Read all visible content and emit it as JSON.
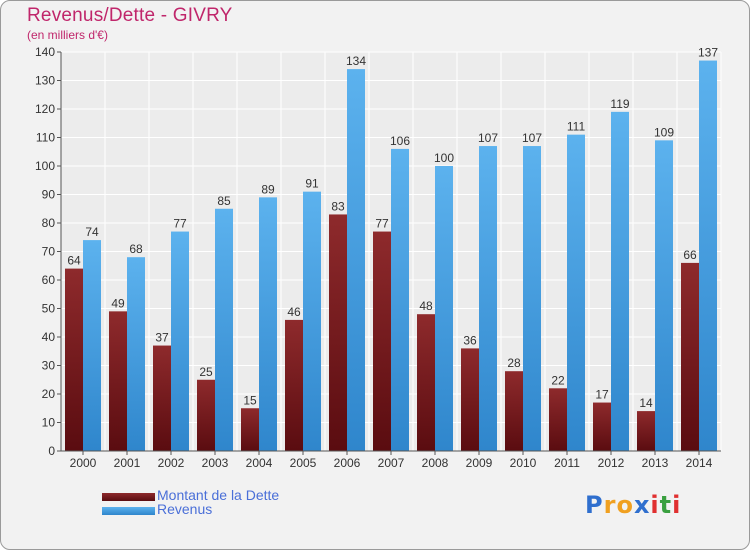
{
  "header": {
    "title": "Revenus/Dette - GIVRY",
    "subtitle": "(en milliers d'€)"
  },
  "legend": {
    "dette_label": "Montant de la Dette",
    "revenus_label": "Revenus"
  },
  "logo": {
    "letters": [
      "P",
      "r",
      "o",
      "x",
      "i",
      "t",
      "i"
    ],
    "colors": [
      "#2f6fce",
      "#f0a020",
      "#f0a020",
      "#2f6fce",
      "#e03030",
      "#3aa040",
      "#e03030"
    ]
  },
  "colors": {
    "dette": "#7a1a1e",
    "revenus": "#4aa3e6",
    "title": "#c0266b"
  },
  "chart_data": {
    "type": "bar",
    "title": "Revenus/Dette - GIVRY",
    "subtitle": "(en milliers d'€)",
    "categories": [
      "2000",
      "2001",
      "2002",
      "2003",
      "2004",
      "2005",
      "2006",
      "2007",
      "2008",
      "2009",
      "2010",
      "2011",
      "2012",
      "2013",
      "2014"
    ],
    "series": [
      {
        "name": "Montant de la Dette",
        "values": [
          64,
          49,
          37,
          25,
          15,
          46,
          83,
          77,
          48,
          36,
          28,
          22,
          17,
          14,
          66
        ]
      },
      {
        "name": "Revenus",
        "values": [
          74,
          68,
          77,
          85,
          89,
          91,
          134,
          106,
          100,
          107,
          107,
          111,
          119,
          109,
          137
        ]
      }
    ],
    "ylim": [
      0,
      140
    ],
    "yticks": [
      0,
      10,
      20,
      30,
      40,
      50,
      60,
      70,
      80,
      90,
      100,
      110,
      120,
      130,
      140
    ],
    "grid": true,
    "legend_position": "bottom-left"
  }
}
